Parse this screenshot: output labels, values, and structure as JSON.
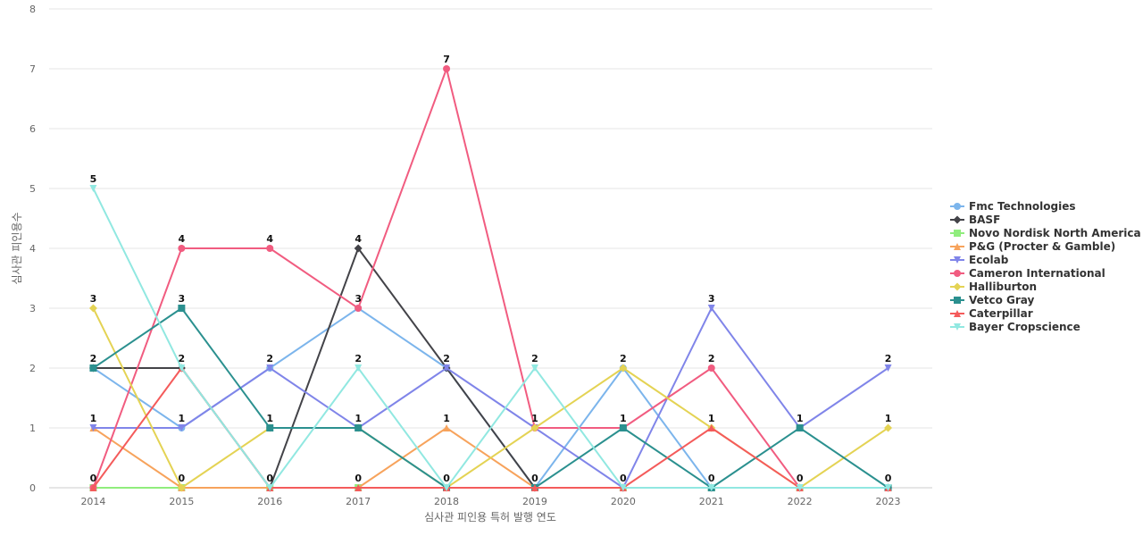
{
  "chart_data": {
    "type": "line",
    "title": "",
    "xlabel": "심사관 피인용 특허 발행 연도",
    "ylabel": "심사관 피인용수",
    "x": [
      "2014",
      "2015",
      "2016",
      "2017",
      "2018",
      "2019",
      "2020",
      "2021",
      "2022",
      "2023"
    ],
    "ylim": [
      0,
      8
    ],
    "yticks": [
      0,
      1,
      2,
      3,
      4,
      5,
      6,
      7,
      8
    ],
    "grid": true,
    "legend_position": "right",
    "series": [
      {
        "name": "Fmc Technologies",
        "color": "#7cb5ec",
        "marker": "circle",
        "values": [
          2,
          1,
          2,
          3,
          2,
          0,
          2,
          0,
          0,
          0
        ]
      },
      {
        "name": "BASF",
        "color": "#434348",
        "marker": "diamond",
        "values": [
          2,
          2,
          0,
          4,
          2,
          0,
          0,
          0,
          0,
          0
        ]
      },
      {
        "name": "Novo Nordisk North America ...",
        "color": "#90ed7d",
        "marker": "square",
        "values": [
          0,
          0,
          0,
          0,
          0,
          0,
          0,
          0,
          0,
          0
        ]
      },
      {
        "name": "P&G (Procter & Gamble)",
        "color": "#f7a35c",
        "marker": "triangle",
        "values": [
          1,
          0,
          0,
          0,
          1,
          0,
          0,
          0,
          0,
          0
        ]
      },
      {
        "name": "Ecolab",
        "color": "#8085e9",
        "marker": "triangle-down",
        "values": [
          1,
          1,
          2,
          1,
          2,
          1,
          0,
          3,
          1,
          2
        ]
      },
      {
        "name": "Cameron International",
        "color": "#f15c80",
        "marker": "circle",
        "values": [
          0,
          4,
          4,
          3,
          7,
          1,
          1,
          2,
          0,
          0
        ]
      },
      {
        "name": "Halliburton",
        "color": "#e4d354",
        "marker": "diamond",
        "values": [
          3,
          0,
          1,
          1,
          0,
          1,
          2,
          1,
          0,
          1
        ]
      },
      {
        "name": "Vetco Gray",
        "color": "#2b908f",
        "marker": "square",
        "values": [
          2,
          3,
          1,
          1,
          0,
          0,
          1,
          0,
          1,
          0
        ]
      },
      {
        "name": "Caterpillar",
        "color": "#f45b5b",
        "marker": "triangle",
        "values": [
          0,
          2,
          0,
          0,
          0,
          0,
          0,
          1,
          0,
          0
        ]
      },
      {
        "name": "Bayer Cropscience",
        "color": "#91e8e1",
        "marker": "triangle-down",
        "values": [
          5,
          2,
          0,
          2,
          0,
          2,
          0,
          0,
          0,
          0
        ]
      }
    ],
    "data_labels": [
      {
        "x": "2014",
        "y": 5,
        "text": "5"
      },
      {
        "x": "2014",
        "y": 3,
        "text": "3"
      },
      {
        "x": "2014",
        "y": 2,
        "text": "2"
      },
      {
        "x": "2014",
        "y": 1,
        "text": "1"
      },
      {
        "x": "2014",
        "y": 0,
        "text": "0"
      },
      {
        "x": "2015",
        "y": 4,
        "text": "4"
      },
      {
        "x": "2015",
        "y": 3,
        "text": "3"
      },
      {
        "x": "2015",
        "y": 2,
        "text": "2"
      },
      {
        "x": "2015",
        "y": 1,
        "text": "1"
      },
      {
        "x": "2015",
        "y": 0,
        "text": "0"
      },
      {
        "x": "2016",
        "y": 4,
        "text": "4"
      },
      {
        "x": "2016",
        "y": 2,
        "text": "2"
      },
      {
        "x": "2016",
        "y": 1,
        "text": "1"
      },
      {
        "x": "2016",
        "y": 0,
        "text": "0"
      },
      {
        "x": "2017",
        "y": 4,
        "text": "4"
      },
      {
        "x": "2017",
        "y": 3,
        "text": "3"
      },
      {
        "x": "2017",
        "y": 2,
        "text": "2"
      },
      {
        "x": "2017",
        "y": 1,
        "text": "1"
      },
      {
        "x": "2017",
        "y": 0,
        "text": "0"
      },
      {
        "x": "2018",
        "y": 7,
        "text": "7"
      },
      {
        "x": "2018",
        "y": 2,
        "text": "2"
      },
      {
        "x": "2018",
        "y": 1,
        "text": "1"
      },
      {
        "x": "2018",
        "y": 0,
        "text": "0"
      },
      {
        "x": "2019",
        "y": 2,
        "text": "2"
      },
      {
        "x": "2019",
        "y": 1,
        "text": "1"
      },
      {
        "x": "2019",
        "y": 0,
        "text": "0"
      },
      {
        "x": "2020",
        "y": 2,
        "text": "2"
      },
      {
        "x": "2020",
        "y": 1,
        "text": "1"
      },
      {
        "x": "2020",
        "y": 0,
        "text": "0"
      },
      {
        "x": "2021",
        "y": 3,
        "text": "3"
      },
      {
        "x": "2021",
        "y": 2,
        "text": "2"
      },
      {
        "x": "2021",
        "y": 1,
        "text": "1"
      },
      {
        "x": "2021",
        "y": 0,
        "text": "0"
      },
      {
        "x": "2022",
        "y": 1,
        "text": "1"
      },
      {
        "x": "2022",
        "y": 0,
        "text": "0"
      },
      {
        "x": "2023",
        "y": 2,
        "text": "2"
      },
      {
        "x": "2023",
        "y": 1,
        "text": "1"
      },
      {
        "x": "2023",
        "y": 0,
        "text": "0"
      }
    ]
  }
}
